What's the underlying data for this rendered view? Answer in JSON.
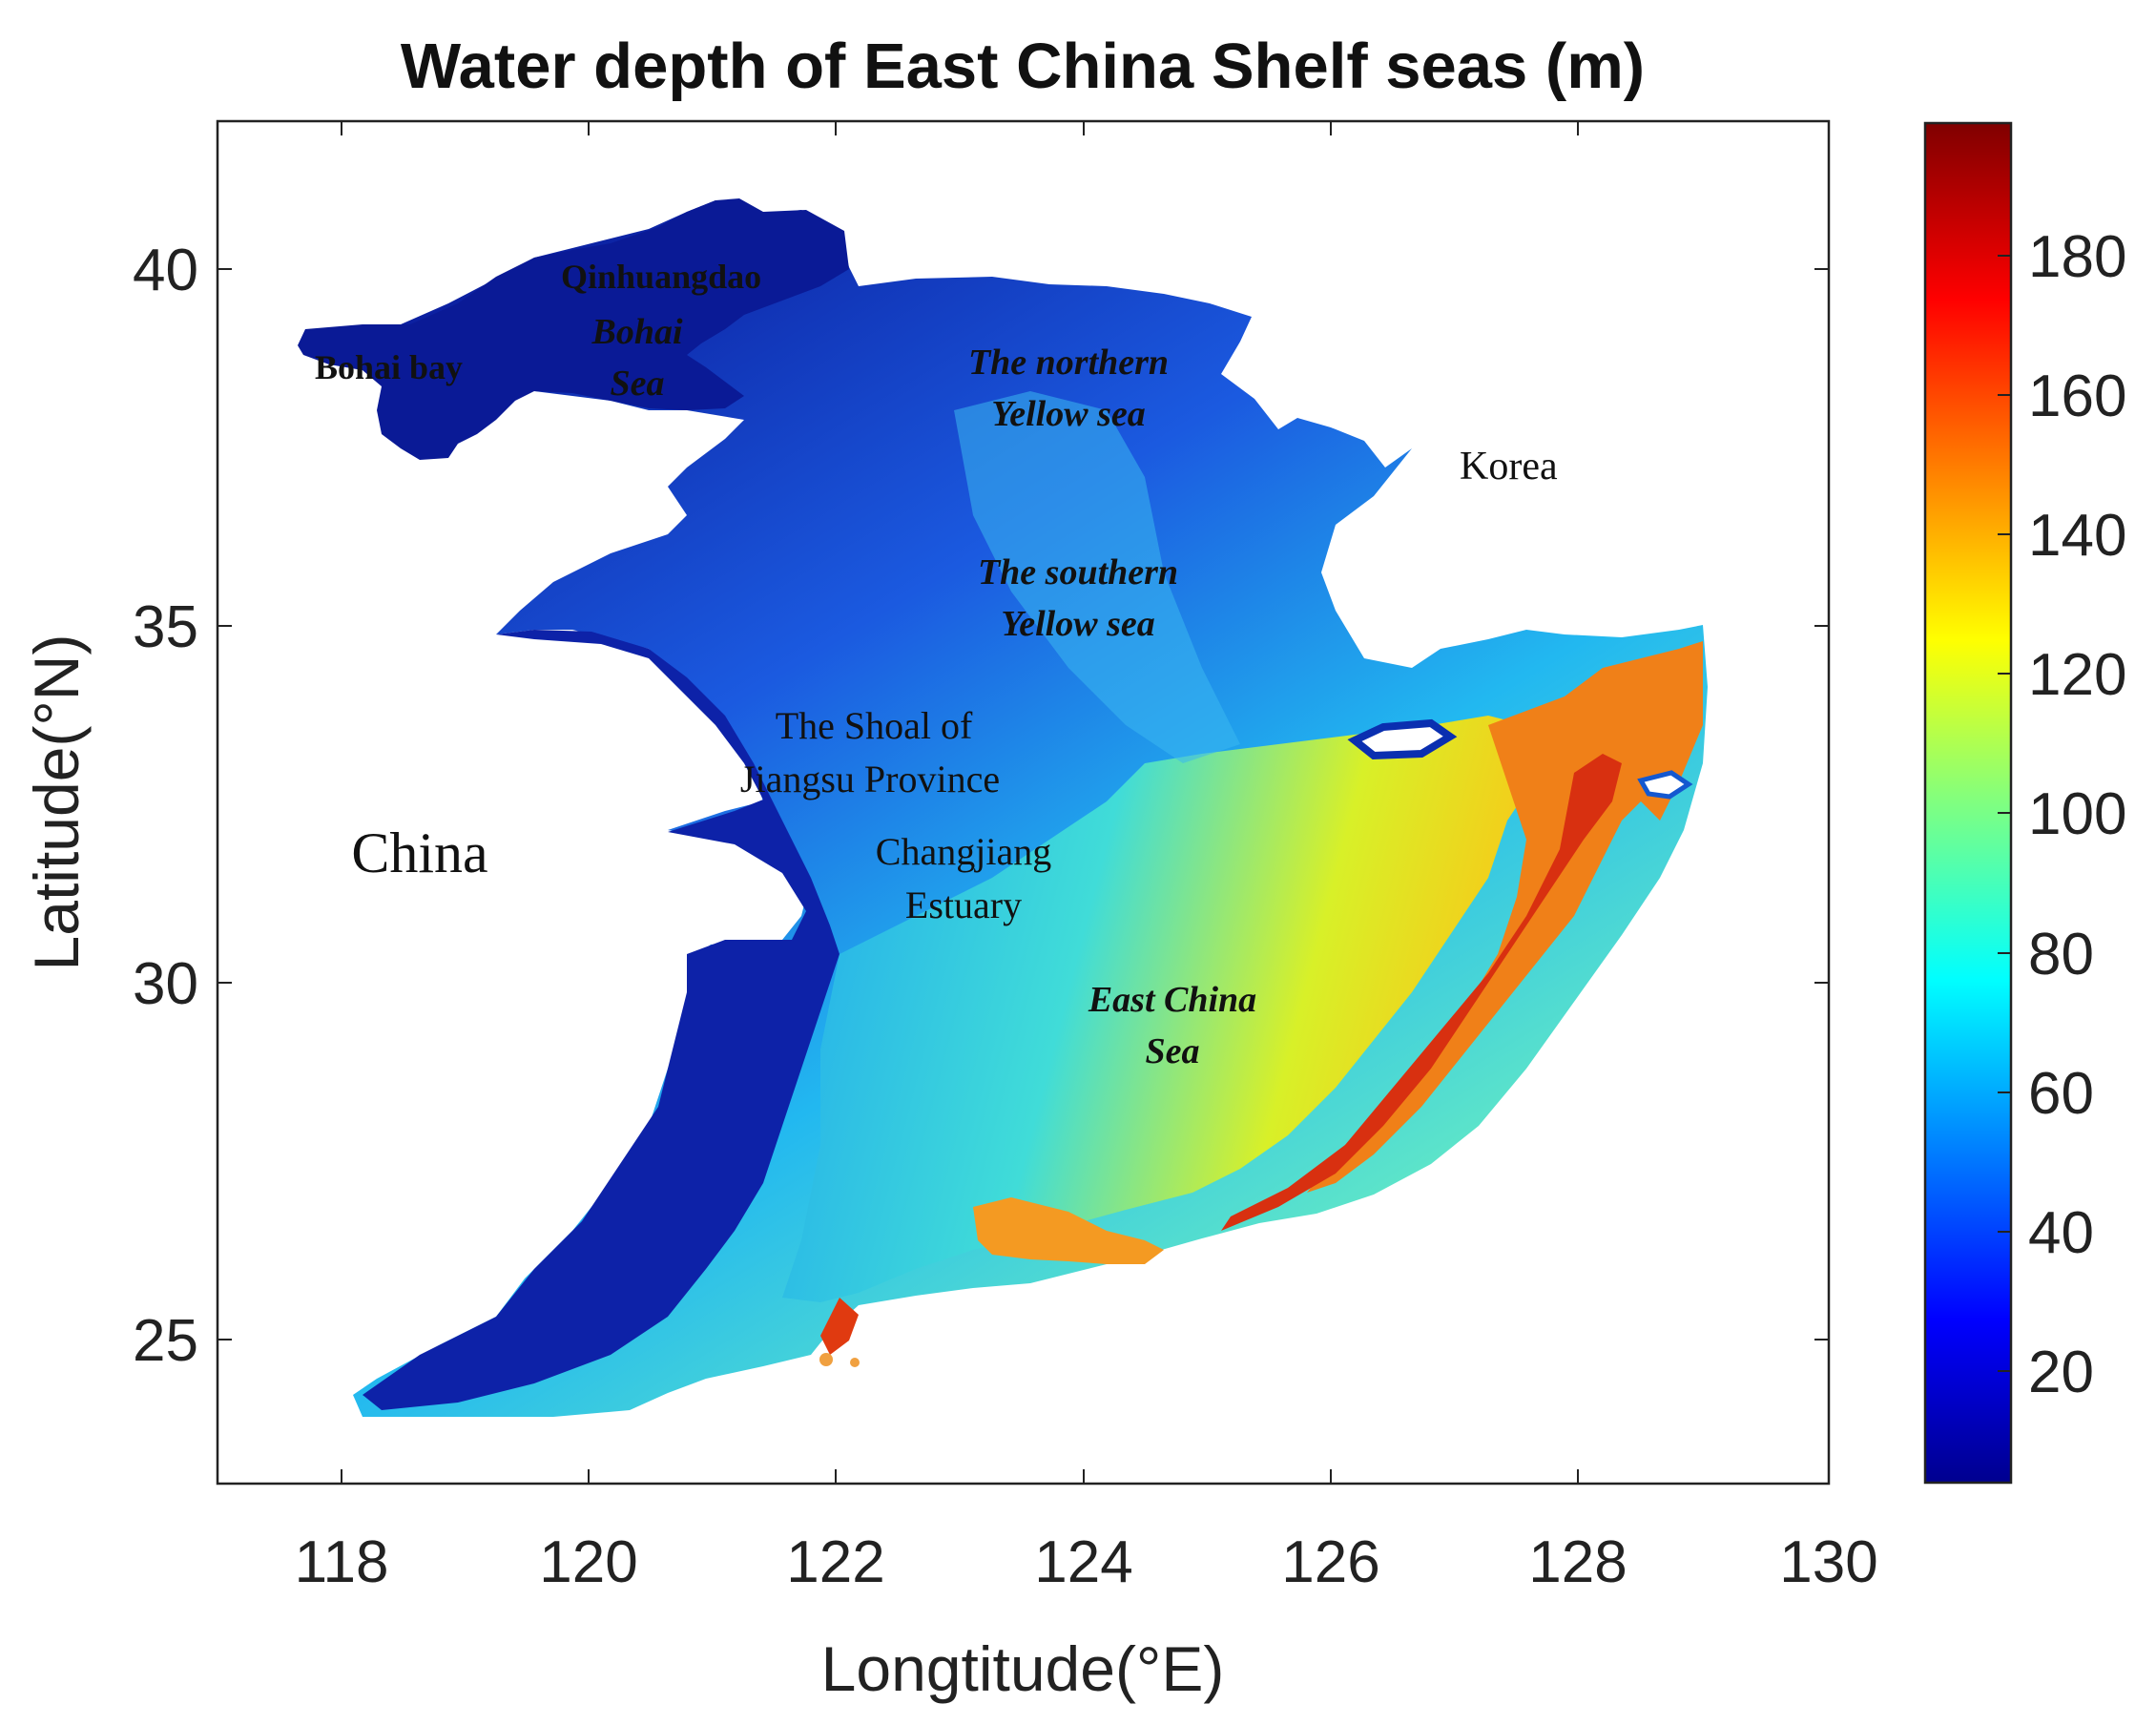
{
  "map": {
    "title": "Water depth of East China Shelf seas (m)",
    "x_axis": {
      "label": "Longtitude(°E)",
      "ticks": [
        "118",
        "120",
        "122",
        "124",
        "126",
        "128",
        "130"
      ]
    },
    "y_axis": {
      "label": "Latitude(°N)",
      "ticks": [
        "25",
        "30",
        "35",
        "40"
      ]
    },
    "colorbar": {
      "ticks": [
        "20",
        "40",
        "60",
        "80",
        "100",
        "120",
        "140",
        "160",
        "180"
      ],
      "range": [
        3,
        198
      ],
      "colormap": "jet"
    },
    "labels": {
      "qinhuangdao": "Qinhuangdao",
      "bohai_sea_1": "Bohai",
      "bohai_sea_2": "Sea",
      "bohai_bay": "Bohai bay",
      "northern_ys_1": "The northern",
      "northern_ys_2": "Yellow sea",
      "korea": "Korea",
      "southern_ys_1": "The southern",
      "southern_ys_2": "Yellow sea",
      "shoal_1": "The Shoal of",
      "shoal_2": "Jiangsu Province",
      "china": "China",
      "changjiang_1": "Changjiang",
      "changjiang_2": "Estuary",
      "ecs_1": "East China",
      "ecs_2": "Sea"
    }
  }
}
